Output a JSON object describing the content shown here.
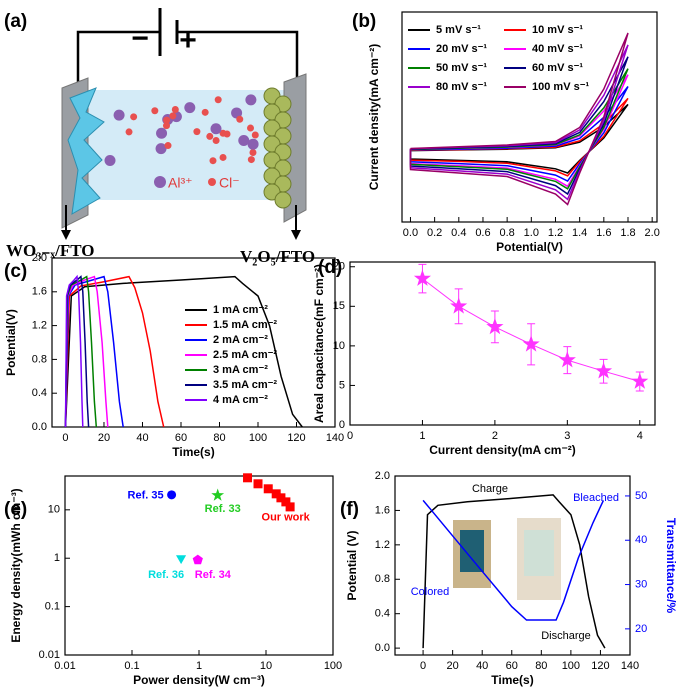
{
  "schematic": {
    "label": "(a)",
    "minus": "−",
    "plus": "+",
    "ion_cation": "Al³⁺",
    "ion_anion": "Cl⁻",
    "left_electrode": "WO₃₋ₓ/FTO",
    "right_electrode": "V₂O₅/FTO"
  },
  "chart_data": [
    {
      "type": "line",
      "label": "(b)",
      "x_label": "Potential(V)",
      "y_label": "Current density(mA cm⁻²)",
      "xlim": [
        -0.07,
        2.04
      ],
      "xticks": [
        {
          "value": 0,
          "label": "0.0"
        },
        0.2,
        0.4,
        0.6,
        0.8,
        {
          "value": 1,
          "label": "1.0"
        },
        1.2,
        1.4,
        1.6,
        1.8,
        {
          "value": 2,
          "label": "2.0"
        }
      ],
      "ylim": [
        -2,
        4
      ],
      "legend": "upper left",
      "legend_columns": 2,
      "x": [
        0,
        0.4,
        0.8,
        1.2,
        1.4,
        1.6,
        1.8,
        1.6,
        1.4,
        1.3,
        1.2,
        0.8,
        0.4,
        0,
        0
      ],
      "series": [
        {
          "name": "5 mV s⁻¹",
          "color": "#000000",
          "values": [
            0.04,
            0.06,
            0.08,
            0.12,
            0.28,
            0.72,
            1.36,
            0.4,
            -0.24,
            -0.6,
            -0.48,
            -0.28,
            -0.24,
            -0.2,
            0.04
          ]
        },
        {
          "name": "10 mV s⁻¹",
          "color": "#ff0000",
          "values": [
            0.05,
            0.07,
            0.09,
            0.14,
            0.32,
            0.81,
            1.53,
            0.45,
            -0.27,
            -0.68,
            -0.54,
            -0.32,
            -0.27,
            -0.23,
            0.05
          ]
        },
        {
          "name": "20 mV s⁻¹",
          "color": "#0000ff",
          "values": [
            0.06,
            0.08,
            0.11,
            0.17,
            0.39,
            0.99,
            1.87,
            0.55,
            -0.33,
            -0.83,
            -0.66,
            -0.39,
            -0.33,
            -0.28,
            0.06
          ]
        },
        {
          "name": "40 mV s⁻¹",
          "color": "#ff00ff",
          "values": [
            0.07,
            0.1,
            0.13,
            0.2,
            0.46,
            1.17,
            2.21,
            0.65,
            -0.39,
            -0.98,
            -0.78,
            -0.46,
            -0.39,
            -0.33,
            0.07
          ]
        },
        {
          "name": "50 mV s⁻¹",
          "color": "#008000",
          "values": [
            0.07,
            0.11,
            0.14,
            0.21,
            0.49,
            1.26,
            2.38,
            0.7,
            -0.42,
            -1.05,
            -0.84,
            -0.49,
            -0.42,
            -0.35,
            0.07
          ]
        },
        {
          "name": "60 mV s⁻¹",
          "color": "#000080",
          "values": [
            0.08,
            0.12,
            0.16,
            0.24,
            0.56,
            1.44,
            2.72,
            0.8,
            -0.48,
            -1.2,
            -0.96,
            -0.56,
            -0.48,
            -0.4,
            0.08
          ]
        },
        {
          "name": "80 mV s⁻¹",
          "color": "#9900cc",
          "values": [
            0.09,
            0.14,
            0.18,
            0.27,
            0.63,
            1.62,
            3.06,
            0.9,
            -0.54,
            -1.35,
            -1.08,
            -0.63,
            -0.54,
            -0.45,
            0.09
          ]
        },
        {
          "name": "100 mV s⁻¹",
          "color": "#990066",
          "values": [
            0.1,
            0.15,
            0.2,
            0.3,
            0.7,
            1.8,
            3.4,
            1.0,
            -0.6,
            -1.5,
            -1.2,
            -0.7,
            -0.6,
            -0.5,
            0.1
          ]
        }
      ]
    },
    {
      "type": "line",
      "label": "(c)",
      "x_label": "Time(s)",
      "y_label": "Potential(V)",
      "xlim": [
        -7,
        140
      ],
      "xticks": [
        0,
        20,
        40,
        60,
        80,
        100,
        120,
        140
      ],
      "ylim": [
        0,
        2.0
      ],
      "yticks": [
        {
          "value": 0,
          "label": "0.0"
        },
        0.4,
        0.8,
        1.2,
        1.6,
        {
          "value": 2,
          "label": "2.0"
        }
      ],
      "legend": "lower right",
      "legend_columns": 1,
      "series": [
        {
          "name": "1 mA cm⁻²",
          "color": "#000000",
          "x": [
            0,
            3,
            10,
            30,
            60,
            88,
            92,
            100,
            106,
            112,
            118,
            123
          ],
          "values": [
            0,
            1.55,
            1.66,
            1.7,
            1.74,
            1.78,
            1.7,
            1.55,
            1.2,
            0.6,
            0.15,
            0
          ]
        },
        {
          "name": "1.5 mA cm⁻²",
          "color": "#ff0000",
          "x": [
            0,
            2,
            8,
            20,
            33,
            36,
            40,
            44,
            48,
            51
          ],
          "values": [
            0,
            1.55,
            1.67,
            1.72,
            1.78,
            1.65,
            1.35,
            0.9,
            0.3,
            0
          ]
        },
        {
          "name": "2 mA cm⁻²",
          "color": "#0000ff",
          "x": [
            0,
            1.5,
            5,
            14,
            20,
            22,
            25,
            28,
            30
          ],
          "values": [
            0,
            1.55,
            1.68,
            1.74,
            1.78,
            1.6,
            1.0,
            0.3,
            0
          ]
        },
        {
          "name": "2.5 mA cm⁻²",
          "color": "#ff00ff",
          "x": [
            0,
            1.2,
            4,
            10,
            15,
            16.5,
            19,
            21,
            22
          ],
          "values": [
            0,
            1.55,
            1.68,
            1.74,
            1.78,
            1.6,
            1.0,
            0.3,
            0
          ]
        },
        {
          "name": "3 mA cm⁻²",
          "color": "#008000",
          "x": [
            0,
            1,
            3,
            8,
            11,
            12,
            13.5,
            15,
            16
          ],
          "values": [
            0,
            1.55,
            1.68,
            1.74,
            1.78,
            1.6,
            1.0,
            0.3,
            0
          ]
        },
        {
          "name": "3.5 mA cm⁻²",
          "color": "#000080",
          "x": [
            0,
            0.8,
            2.5,
            6,
            8,
            9,
            10.2,
            11.3,
            12
          ],
          "values": [
            0,
            1.55,
            1.68,
            1.74,
            1.78,
            1.6,
            1.0,
            0.3,
            0
          ]
        },
        {
          "name": "4 mA cm⁻²",
          "color": "#8000ff",
          "x": [
            0,
            0.6,
            2,
            4.5,
            6,
            6.8,
            7.8,
            8.6,
            9
          ],
          "values": [
            0,
            1.55,
            1.68,
            1.74,
            1.78,
            1.6,
            1.0,
            0.3,
            0
          ]
        }
      ]
    },
    {
      "type": "line",
      "label": "(d)",
      "x_label": "Current density(mA cm⁻²)",
      "y_label": "Areal capacitance(mF cm⁻²)",
      "xlim": [
        0,
        4.21
      ],
      "xticks": [
        0,
        1,
        2,
        3,
        4
      ],
      "ylim": [
        0,
        20.6
      ],
      "yticks": [
        0,
        5,
        10,
        15,
        20
      ],
      "color": "#ff33ff",
      "marker": "star",
      "x": [
        1,
        1.5,
        2,
        2.5,
        3,
        3.5,
        4
      ],
      "values": [
        18.5,
        15,
        12.4,
        10.2,
        8.2,
        6.8,
        5.5
      ],
      "errors": [
        1.8,
        2.2,
        2,
        2.6,
        1.7,
        1.5,
        1.2
      ]
    },
    {
      "type": "scatter",
      "label": "(e)",
      "x_label": "Power density(W cm⁻³)",
      "y_label": "Energy density(mWh cm⁻³)",
      "xscale": "log",
      "yscale": "log",
      "xlim": [
        0.01,
        100
      ],
      "xticks": [
        0.01,
        0.1,
        1,
        10,
        100
      ],
      "ylim": [
        0.01,
        50
      ],
      "yticks": [
        0.01,
        0.1,
        1,
        10
      ],
      "series": [
        {
          "name": "Our work",
          "color": "#ff0000",
          "marker": "square",
          "x": [
            5.3,
            7.6,
            10.8,
            14.2,
            16.7,
            19.8,
            22.9
          ],
          "values": [
            45.9,
            34.5,
            27.2,
            21.4,
            17.7,
            14.6,
            11.5
          ]
        },
        {
          "name": "Ref. 35",
          "color": "#0000ff",
          "marker": "circle",
          "x": [
            0.39
          ],
          "values": [
            20.4
          ]
        },
        {
          "name": "Ref. 33",
          "color": "#22cc22",
          "marker": "star",
          "x": [
            1.9
          ],
          "values": [
            20
          ]
        },
        {
          "name": "Ref. 36",
          "color": "#00dddd",
          "marker": "triangle-down",
          "x": [
            0.54
          ],
          "values": [
            1.0
          ]
        },
        {
          "name": "Ref. 34",
          "color": "#ff00ff",
          "marker": "pentagon",
          "x": [
            0.96
          ],
          "values": [
            0.92
          ]
        }
      ]
    },
    {
      "type": "line",
      "label": "(f)",
      "x_label": "Time(s)",
      "y_label": "Potential (V)",
      "y2_label": "Transmittance/%",
      "xlim": [
        -19,
        140
      ],
      "xticks": [
        0,
        20,
        40,
        60,
        80,
        100,
        120,
        140
      ],
      "ylim": [
        -0.08,
        2.0
      ],
      "yticks": [
        {
          "value": 0,
          "label": "0.0"
        },
        0.4,
        0.8,
        1.2,
        1.6,
        {
          "value": 2,
          "label": "2.0"
        }
      ],
      "y2lim": [
        14.1,
        54.5
      ],
      "y2ticks": [
        20,
        30,
        40,
        50
      ],
      "annotations": [
        "Charge",
        "Discharge",
        "Colored",
        "Bleached"
      ],
      "series": [
        {
          "color": "#000000",
          "x": [
            0,
            3,
            10,
            30,
            60,
            88,
            92,
            100,
            106,
            112,
            118,
            123
          ],
          "values": [
            0,
            1.55,
            1.66,
            1.7,
            1.74,
            1.78,
            1.7,
            1.55,
            1.2,
            0.6,
            0.15,
            0
          ]
        },
        {
          "color": "#0000ff",
          "axis": "y2",
          "x": [
            0,
            5,
            20,
            40,
            60,
            70,
            90,
            95,
            105,
            115,
            122
          ],
          "values": [
            49,
            47,
            41,
            33,
            25,
            22,
            22,
            26,
            36,
            44,
            49
          ]
        }
      ]
    }
  ]
}
